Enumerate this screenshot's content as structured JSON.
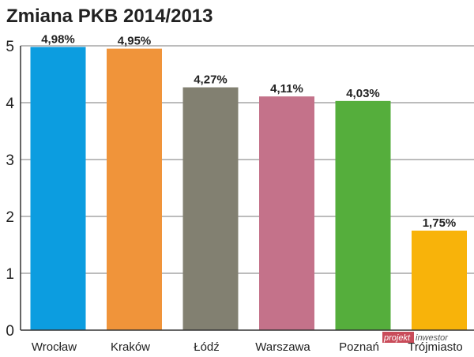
{
  "chart_data": {
    "type": "bar",
    "title": "Zmiana PKB 2014/2013",
    "categories": [
      "Wrocław",
      "Kraków",
      "Łódź",
      "Warszawa",
      "Poznań",
      "Trójmiasto"
    ],
    "values": [
      4.98,
      4.95,
      4.27,
      4.11,
      4.03,
      1.75
    ],
    "data_labels": [
      "4,98%",
      "4,95%",
      "4,27%",
      "4,11%",
      "4,03%",
      "1,75%"
    ],
    "colors": [
      "#0c9de0",
      "#f0943a",
      "#828071",
      "#c4728a",
      "#55ae3c",
      "#f8b30a"
    ],
    "ylim": [
      0,
      5
    ],
    "yticks": [
      "0",
      "1",
      "2",
      "3",
      "4",
      "5"
    ],
    "xlabel": "",
    "ylabel": "",
    "grid": true,
    "legend": "none"
  },
  "watermark": {
    "part1": "projekt",
    "part2": "inwestor"
  }
}
